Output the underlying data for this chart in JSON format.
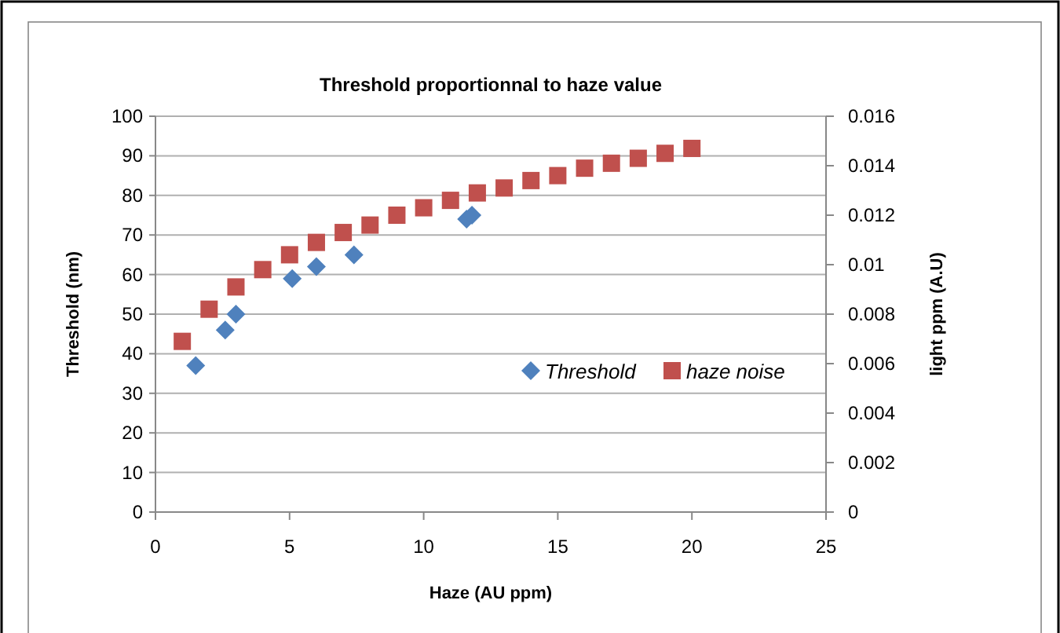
{
  "chart_data": {
    "type": "scatter",
    "title": "Threshold proportionnal to haze value",
    "xlabel": "Haze (AU ppm)",
    "ylabel": "Threshold (nm)",
    "y2label": "light ppm (A.U)",
    "xlim": [
      0,
      25
    ],
    "xticks": [
      0,
      5,
      10,
      15,
      20,
      25
    ],
    "ylim": [
      0,
      100
    ],
    "yticks": [
      0,
      10,
      20,
      30,
      40,
      50,
      60,
      70,
      80,
      90,
      100
    ],
    "y2lim": [
      0,
      0.016
    ],
    "y2ticks": [
      0,
      0.002,
      0.004,
      0.006,
      0.008,
      0.01,
      0.012,
      0.014,
      0.016
    ],
    "grid": "y",
    "legend": "right",
    "series": [
      {
        "name": "Threshold",
        "color": "#4f81bd",
        "marker": "diamond",
        "x": [
          1.5,
          2.6,
          3,
          5.1,
          6,
          7.4,
          11.6,
          11.8
        ],
        "values": [
          37,
          46,
          50,
          59,
          62,
          65,
          74,
          75
        ]
      },
      {
        "name": "haze noise",
        "color": "#c0504d",
        "marker": "square",
        "axis": "y2",
        "x": [
          1,
          2,
          3,
          4,
          5,
          6,
          7,
          8,
          9,
          10,
          11,
          12,
          13,
          14,
          15,
          16,
          17,
          18,
          19,
          20
        ],
        "values": [
          0.0069,
          0.0082,
          0.0091,
          0.0098,
          0.0104,
          0.0109,
          0.0113,
          0.0116,
          0.012,
          0.0123,
          0.0126,
          0.0129,
          0.0131,
          0.0134,
          0.0136,
          0.0139,
          0.0141,
          0.0143,
          0.0145,
          0.0147
        ]
      }
    ]
  }
}
